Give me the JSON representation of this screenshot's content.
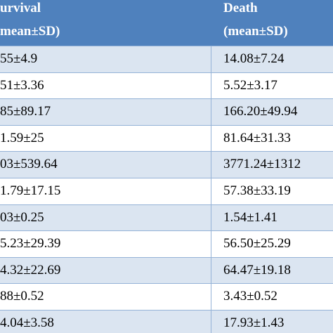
{
  "table": {
    "header": [
      [
        "urvival",
        "mean±SD)"
      ],
      [
        "Death",
        "(mean±SD)"
      ]
    ],
    "rows": [
      [
        "55±4.9",
        "14.08±7.24"
      ],
      [
        "51±3.36",
        "5.52±3.17"
      ],
      [
        "85±89.17",
        "166.20±49.94"
      ],
      [
        "1.59±25",
        "81.64±31.33"
      ],
      [
        "03±539.64",
        "3771.24±1312"
      ],
      [
        "1.79±17.15",
        "57.38±33.19"
      ],
      [
        "03±0.25",
        "1.54±1.41"
      ],
      [
        "5.23±29.39",
        "56.50±25.29"
      ],
      [
        "4.32±22.69",
        "64.47±19.18"
      ],
      [
        "88±0.52",
        "3.43±0.52"
      ],
      [
        "4.04±3.58",
        "17.93±1.43"
      ]
    ]
  }
}
